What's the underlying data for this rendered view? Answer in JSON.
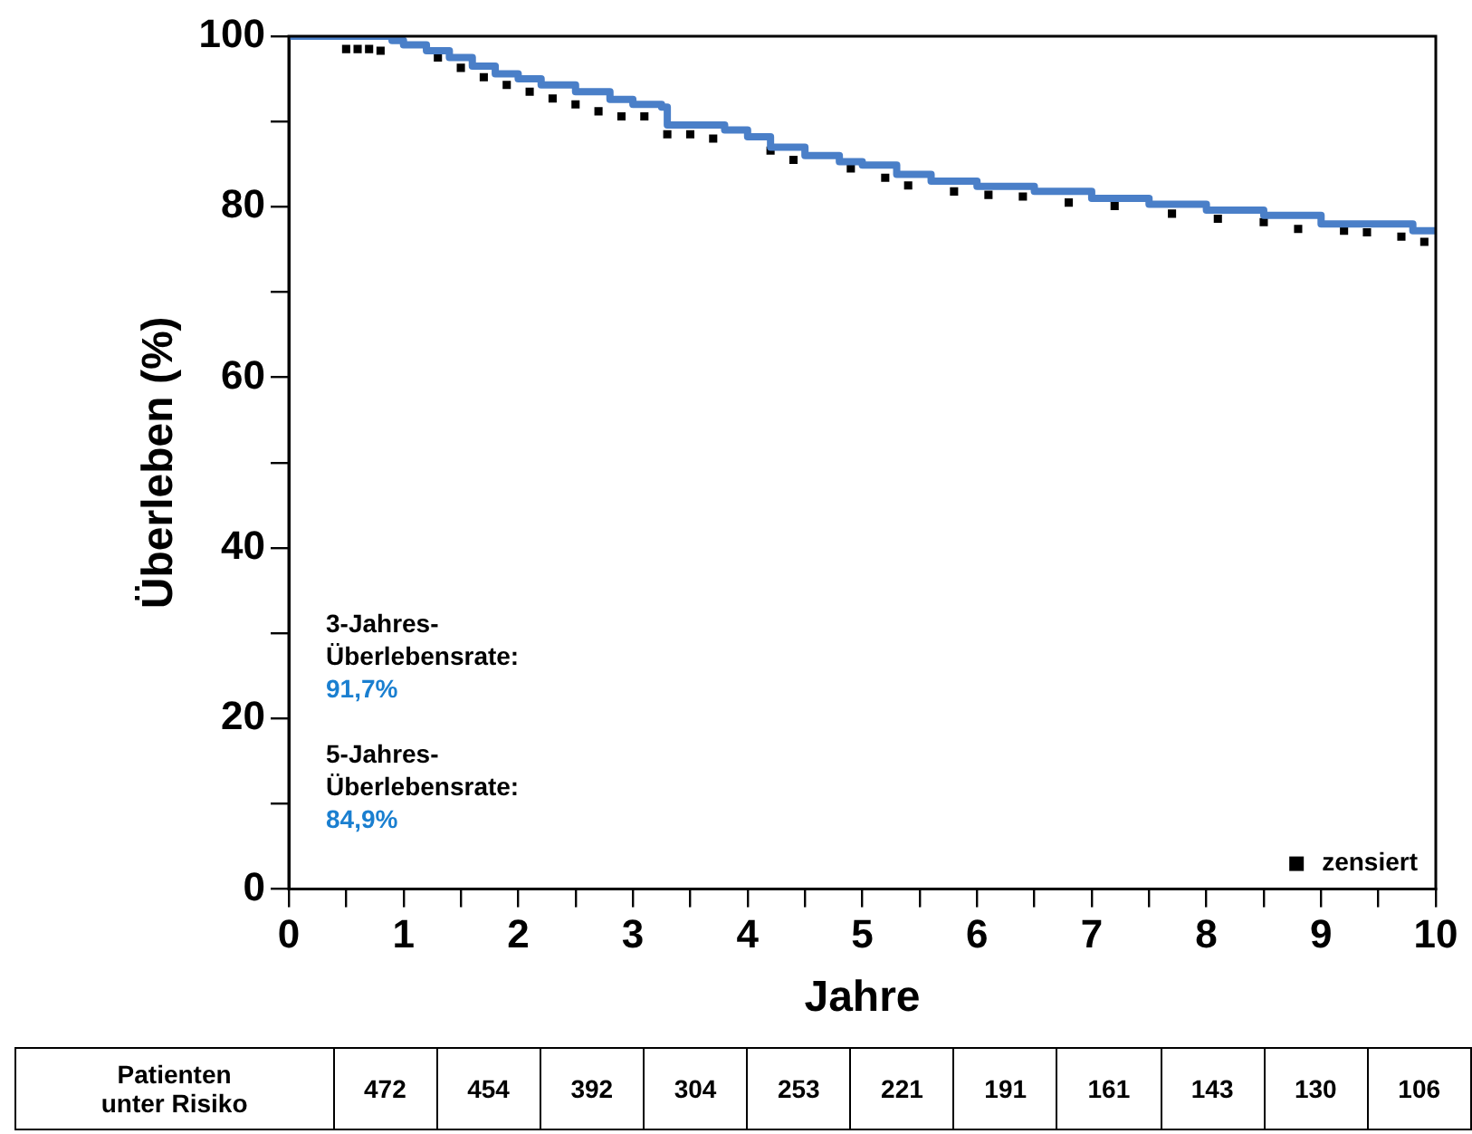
{
  "chart_data": {
    "type": "step",
    "xlabel": "Jahre",
    "ylabel": "Überleben (%)",
    "xlim": [
      0,
      10
    ],
    "ylim": [
      0,
      100
    ],
    "xticks": [
      0,
      {
        "value": 0.5,
        "label": null
      },
      1,
      {
        "value": 1.5,
        "label": null
      },
      2,
      {
        "value": 2.5,
        "label": null
      },
      3,
      {
        "value": 3.5,
        "label": null
      },
      4,
      {
        "value": 4.5,
        "label": null
      },
      5,
      {
        "value": 5.5,
        "label": null
      },
      6,
      {
        "value": 6.5,
        "label": null
      },
      7,
      {
        "value": 7.5,
        "label": null
      },
      8,
      {
        "value": 8.5,
        "label": null
      },
      9,
      {
        "value": 9.5,
        "label": null
      },
      10
    ],
    "yticks": [
      0,
      {
        "value": 10,
        "label": null
      },
      20,
      {
        "value": 30,
        "label": null
      },
      40,
      {
        "value": 50,
        "label": null
      },
      60,
      {
        "value": 70,
        "label": null
      },
      80,
      {
        "value": 90,
        "label": null
      },
      100
    ],
    "grid": false,
    "legend": "bottom right",
    "series": [
      {
        "color": "#4a7fc8",
        "x": [
          0,
          0.9,
          1.0,
          1.2,
          1.4,
          1.6,
          1.8,
          2.0,
          2.2,
          2.5,
          2.8,
          3.0,
          3.25,
          3.3,
          3.7,
          3.8,
          4.0,
          4.2,
          4.5,
          4.8,
          5.0,
          5.3,
          5.6,
          6.0,
          6.5,
          7.0,
          7.5,
          8.0,
          8.5,
          9.0,
          9.5,
          9.8,
          10
        ],
        "values": [
          100,
          99.5,
          99,
          98.3,
          97.5,
          96.5,
          95.6,
          95,
          94.3,
          93.5,
          92.6,
          92,
          91.7,
          89.6,
          89.6,
          89,
          88.2,
          87,
          86,
          85.3,
          84.9,
          83.8,
          83,
          82.4,
          81.8,
          81,
          80.3,
          79.6,
          79,
          78,
          78,
          77.2,
          76.8
        ]
      },
      {
        "type": "scatter",
        "name": "zensiert",
        "marker": "square",
        "color": "#000000",
        "x": [
          0.5,
          0.6,
          0.7,
          0.8,
          1.3,
          1.5,
          1.7,
          1.9,
          2.1,
          2.3,
          2.5,
          2.7,
          2.9,
          3.1,
          3.3,
          3.5,
          3.7,
          4.2,
          4.4,
          4.9,
          5.2,
          5.4,
          5.8,
          6.1,
          6.4,
          6.8,
          7.2,
          7.7,
          8.1,
          8.5,
          8.8,
          9.2,
          9.4,
          9.7,
          9.9
        ],
        "values": [
          98.5,
          98.5,
          98.5,
          98.3,
          97.5,
          96.3,
          95.2,
          94.3,
          93.5,
          92.7,
          92,
          91.2,
          90.6,
          90.6,
          88.5,
          88.5,
          88,
          86.6,
          85.5,
          84.5,
          83.4,
          82.5,
          81.8,
          81.4,
          81.2,
          80.5,
          80.1,
          79.2,
          78.6,
          78.2,
          77.4,
          77.2,
          77,
          76.5,
          75.9
        ]
      }
    ],
    "annotations": [
      "3-Jahres-\nÜberlebensrate:",
      "91,7%",
      "5-Jahres-\nÜberlebensrate:",
      "84,9%",
      "Patienten\nunter Risiko",
      "472",
      "454",
      "392",
      "304",
      "253",
      "221",
      "191",
      "161",
      "143",
      "130",
      "106"
    ]
  }
}
